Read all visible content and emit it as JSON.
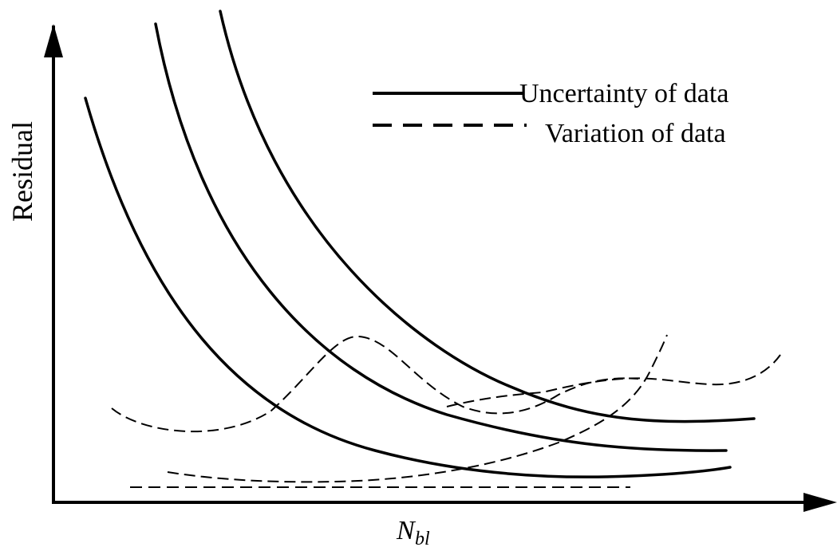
{
  "chart_data": {
    "type": "line",
    "ylabel": "Residual",
    "xlabel_main": "N",
    "xlabel_sub": "bl",
    "axis_ticks": false,
    "grid": false,
    "legend_position": "top-right",
    "legend": [
      {
        "label": "Uncertainty of data",
        "style": "solid"
      },
      {
        "label": "Variation of data",
        "style": "dashed"
      }
    ],
    "series_shapes": [
      {
        "style": "solid",
        "shape": "decreasing-convex",
        "count": 3
      },
      {
        "style": "dashed",
        "shape": "wave",
        "count": 2
      },
      {
        "style": "dashed",
        "shape": "rising",
        "count": 1
      },
      {
        "style": "dashed",
        "shape": "flat",
        "count": 1
      }
    ]
  }
}
